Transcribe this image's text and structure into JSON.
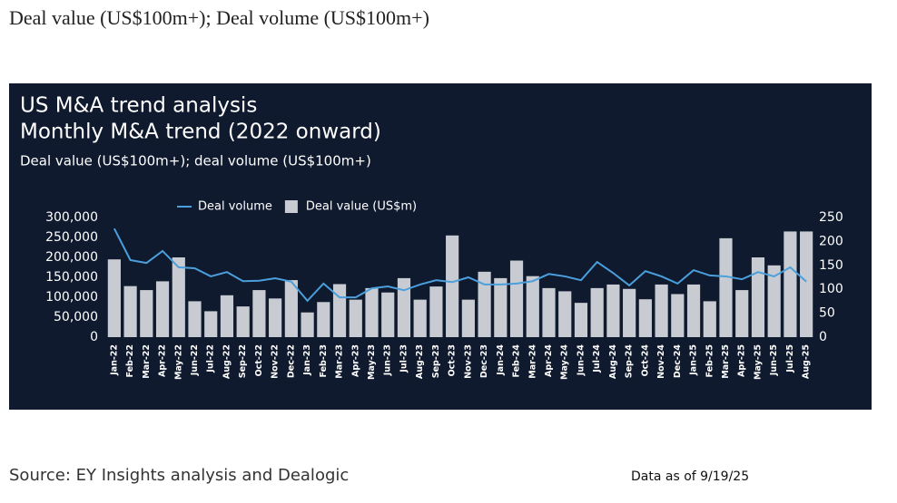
{
  "page": {
    "heading": "Deal value (US$100m+); Deal volume (US$100m+)",
    "source": "Source: EY Insights analysis and Dealogic",
    "as_of": "Data as of 9/19/25"
  },
  "chart_data": {
    "type": "bar",
    "title": "US M&A trend analysis",
    "subtitle": "Monthly M&A trend (2022 onward)",
    "description": "Deal value (US$100m+); deal volume (US$100m+)",
    "categories": [
      "Jan-22",
      "Feb-22",
      "Mar-22",
      "Apr-22",
      "May-22",
      "Jun-22",
      "Jul-22",
      "Aug-22",
      "Sep-22",
      "Oct-22",
      "Nov-22",
      "Dec-22",
      "Jan-23",
      "Feb-23",
      "Mar-23",
      "Apr-23",
      "May-23",
      "Jun-23",
      "Jul-23",
      "Aug-23",
      "Sep-23",
      "Oct-23",
      "Nov-23",
      "Dec-23",
      "Jan-24",
      "Feb-24",
      "Mar-24",
      "Apr-24",
      "May-24",
      "Jun-24",
      "Jul-24",
      "Aug-24",
      "Sep-24",
      "Oct-24",
      "Nov-24",
      "Dec-24",
      "Jan-25",
      "Feb-25",
      "Mar-25",
      "Apr-25",
      "May-25",
      "Jun-25",
      "Jul-25",
      "Aug-25"
    ],
    "series": [
      {
        "name": "Deal volume",
        "type": "line",
        "axis": "y2",
        "color": "#4a9fdc",
        "values": [
          227,
          161,
          155,
          180,
          146,
          144,
          127,
          136,
          117,
          118,
          123,
          116,
          76,
          112,
          83,
          83,
          102,
          106,
          98,
          110,
          119,
          115,
          125,
          110,
          110,
          112,
          117,
          132,
          127,
          119,
          157,
          134,
          108,
          138,
          127,
          112,
          140,
          129,
          127,
          121,
          136,
          127,
          146,
          116
        ]
      },
      {
        "name": "Deal value (US$m)",
        "type": "bar",
        "color": "#c8ccd2",
        "values": [
          195000,
          128000,
          118000,
          140000,
          200000,
          90000,
          65000,
          105000,
          77000,
          118000,
          97000,
          143000,
          62000,
          88000,
          133000,
          94000,
          123000,
          112000,
          148000,
          94000,
          127000,
          255000,
          94000,
          164000,
          148000,
          192000,
          153000,
          123000,
          115000,
          86000,
          123000,
          132000,
          121000,
          95000,
          132000,
          108000,
          132000,
          90000,
          248000,
          118000,
          200000,
          180000,
          265000,
          265000
        ]
      }
    ],
    "ylim": [
      0,
      300000
    ],
    "yticks": [
      0,
      {
        "value": 50000,
        "label": "50,000"
      },
      {
        "value": 100000,
        "label": "100,000"
      },
      {
        "value": 150000,
        "label": "150,000"
      },
      {
        "value": 200000,
        "label": "200,000"
      },
      {
        "value": 250000,
        "label": "250,000"
      },
      {
        "value": 300000,
        "label": "300,000"
      }
    ],
    "y2lim": [
      0,
      250
    ],
    "y2ticks": [
      0,
      50,
      100,
      150,
      200,
      250
    ],
    "grid": false,
    "background": "#0f1a2e"
  }
}
